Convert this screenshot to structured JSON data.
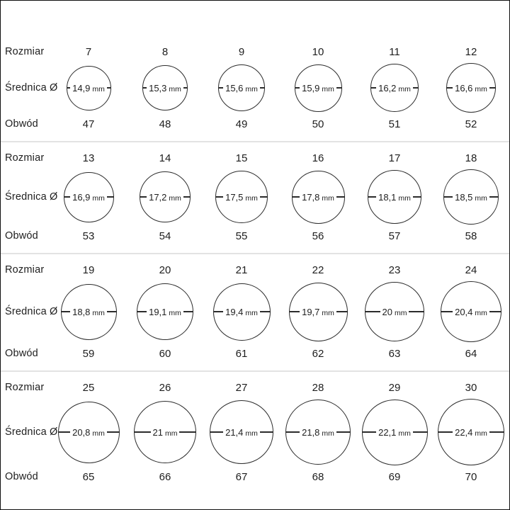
{
  "page": {
    "background": "#ffffff",
    "border_color": "#101010",
    "text_color": "#1e1e1e",
    "circle_stroke_color": "#2c2c2c",
    "divider_color": "#e3e3e3"
  },
  "row_labels": {
    "size": "Rozmiar",
    "diameter": "Średnica Ø",
    "circumference": "Obwód"
  },
  "unit": "mm",
  "chart_data": {
    "type": "table",
    "columns": [
      "Rozmiar",
      "Średnica Ø",
      "Obwód"
    ],
    "groups": [
      {
        "items": [
          {
            "size": "7",
            "diameter": "14,9",
            "diameter_mm": 14.9,
            "circumference": "47"
          },
          {
            "size": "8",
            "diameter": "15,3",
            "diameter_mm": 15.3,
            "circumference": "48"
          },
          {
            "size": "9",
            "diameter": "15,6",
            "diameter_mm": 15.6,
            "circumference": "49"
          },
          {
            "size": "10",
            "diameter": "15,9",
            "diameter_mm": 15.9,
            "circumference": "50"
          },
          {
            "size": "11",
            "diameter": "16,2",
            "diameter_mm": 16.2,
            "circumference": "51"
          },
          {
            "size": "12",
            "diameter": "16,6",
            "diameter_mm": 16.6,
            "circumference": "52"
          }
        ]
      },
      {
        "items": [
          {
            "size": "13",
            "diameter": "16,9",
            "diameter_mm": 16.9,
            "circumference": "53"
          },
          {
            "size": "14",
            "diameter": "17,2",
            "diameter_mm": 17.2,
            "circumference": "54"
          },
          {
            "size": "15",
            "diameter": "17,5",
            "diameter_mm": 17.5,
            "circumference": "55"
          },
          {
            "size": "16",
            "diameter": "17,8",
            "diameter_mm": 17.8,
            "circumference": "56"
          },
          {
            "size": "17",
            "diameter": "18,1",
            "diameter_mm": 18.1,
            "circumference": "57"
          },
          {
            "size": "18",
            "diameter": "18,5",
            "diameter_mm": 18.5,
            "circumference": "58"
          }
        ]
      },
      {
        "items": [
          {
            "size": "19",
            "diameter": "18,8",
            "diameter_mm": 18.8,
            "circumference": "59"
          },
          {
            "size": "20",
            "diameter": "19,1",
            "diameter_mm": 19.1,
            "circumference": "60"
          },
          {
            "size": "21",
            "diameter": "19,4",
            "diameter_mm": 19.4,
            "circumference": "61"
          },
          {
            "size": "22",
            "diameter": "19,7",
            "diameter_mm": 19.7,
            "circumference": "62"
          },
          {
            "size": "23",
            "diameter": "20",
            "diameter_mm": 20.0,
            "circumference": "63"
          },
          {
            "size": "24",
            "diameter": "20,4",
            "diameter_mm": 20.4,
            "circumference": "64"
          }
        ]
      },
      {
        "items": [
          {
            "size": "25",
            "diameter": "20,8",
            "diameter_mm": 20.8,
            "circumference": "65"
          },
          {
            "size": "26",
            "diameter": "21",
            "diameter_mm": 21.0,
            "circumference": "66"
          },
          {
            "size": "27",
            "diameter": "21,4",
            "diameter_mm": 21.4,
            "circumference": "67"
          },
          {
            "size": "28",
            "diameter": "21,8",
            "diameter_mm": 21.8,
            "circumference": "68"
          },
          {
            "size": "29",
            "diameter": "22,1",
            "diameter_mm": 22.1,
            "circumference": "69"
          },
          {
            "size": "30",
            "diameter": "22,4",
            "diameter_mm": 22.4,
            "circumference": "70"
          }
        ]
      }
    ]
  }
}
